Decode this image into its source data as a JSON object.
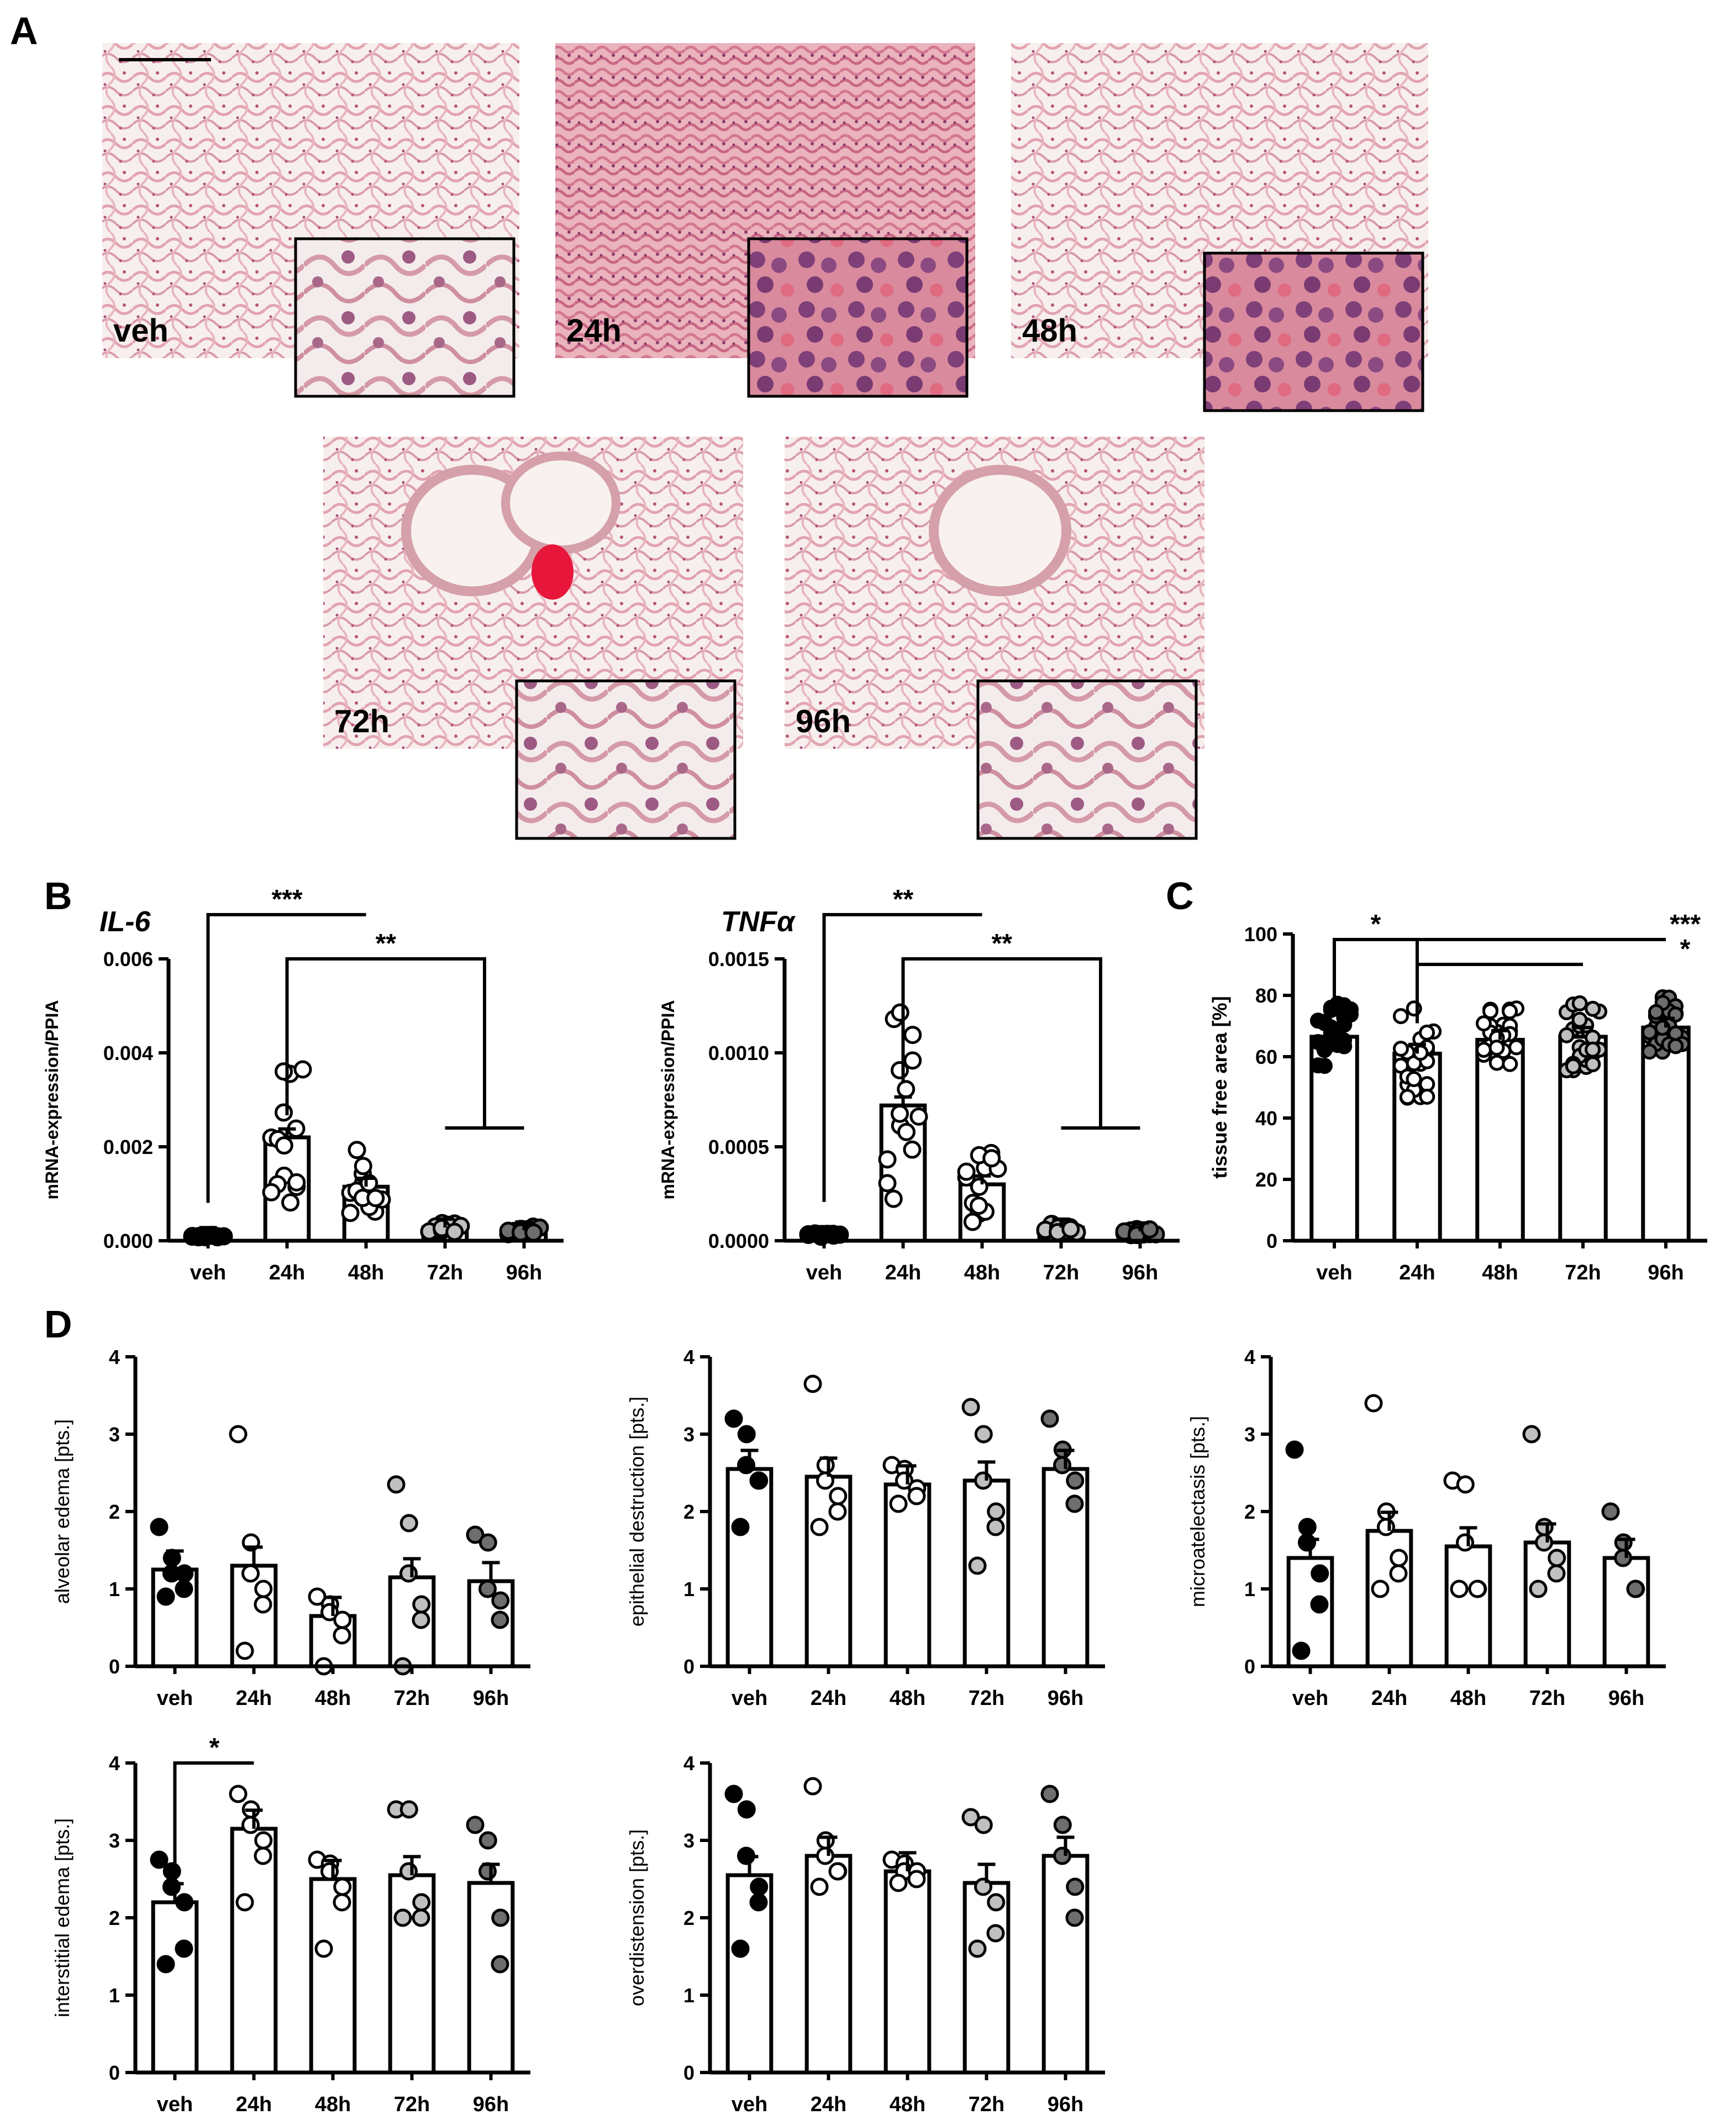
{
  "colors": {
    "axis": "#000000",
    "tissue_pink": "#e8a9b4",
    "tissue_dark": "#b5537a",
    "background_light": "#f5eeee",
    "veh_dot": "#000000",
    "h24_dot": "#ffffff",
    "h48_dot": "#ffffff",
    "h72_dot": "#c0c0c0",
    "h96_dot": "#6e6e6e"
  },
  "panel_letters": {
    "A": "A",
    "B": "B",
    "C": "C",
    "D": "D"
  },
  "histology": [
    {
      "label": "veh"
    },
    {
      "label": "24h"
    },
    {
      "label": "48h"
    },
    {
      "label": "72h"
    },
    {
      "label": "96h"
    }
  ],
  "chart_data": [
    {
      "panel": "B",
      "type": "bar",
      "title": "IL-6",
      "ylabel": "mRNA-expression/PPIA",
      "categories": [
        "veh",
        "24h",
        "48h",
        "72h",
        "96h"
      ],
      "values": [
        0.0001,
        0.0022,
        0.00115,
        0.00028,
        0.00022
      ],
      "ylim": [
        0,
        0.006
      ],
      "yticks": [
        "0.000",
        "0.002",
        "0.004",
        "0.006"
      ],
      "significance": [
        {
          "label": "***",
          "from": "veh",
          "to": "48h"
        },
        {
          "label": "**",
          "from": "24h",
          "to": "72h, 96h"
        }
      ]
    },
    {
      "panel": "B",
      "type": "bar",
      "title": "TNFα",
      "ylabel": "mRNA-expression/PPIA",
      "categories": [
        "veh",
        "24h",
        "48h",
        "72h",
        "96h"
      ],
      "values": [
        3e-05,
        0.00072,
        0.0003,
        7e-05,
        5e-05
      ],
      "ylim": [
        0,
        0.0015
      ],
      "yticks": [
        "0.0000",
        "0.0005",
        "0.0010",
        "0.0015"
      ],
      "significance": [
        {
          "label": "**",
          "from": "veh",
          "to": "48h"
        },
        {
          "label": "**",
          "from": "24h",
          "to": "72h, 96h"
        }
      ]
    },
    {
      "panel": "C",
      "type": "bar",
      "ylabel": "tissue free area [%]",
      "categories": [
        "veh",
        "24h",
        "48h",
        "72h",
        "96h"
      ],
      "values": [
        66.5,
        61,
        65.5,
        66.5,
        69.5
      ],
      "ylim": [
        0,
        100
      ],
      "yticks": [
        "0",
        "20",
        "40",
        "60",
        "80",
        "100"
      ],
      "significance": [
        {
          "label": "*",
          "from": "veh",
          "to": "24h"
        },
        {
          "label": "*",
          "from": "24h",
          "to": "72h"
        },
        {
          "label": "***",
          "from": "24h",
          "to": "96h"
        }
      ]
    },
    {
      "panel": "D",
      "type": "bar",
      "ylabel": "alveolar edema [pts.]",
      "categories": [
        "veh",
        "24h",
        "48h",
        "72h",
        "96h"
      ],
      "values": [
        1.25,
        1.3,
        0.65,
        1.15,
        1.1
      ],
      "ylim": [
        0,
        4
      ],
      "yticks": [
        "0",
        "1",
        "2",
        "3",
        "4"
      ],
      "points": [
        [
          1.8,
          1.4,
          1.2,
          1.2,
          1.0,
          0.9
        ],
        [
          3.0,
          1.6,
          1.2,
          1.0,
          0.8,
          0.2
        ],
        [
          0.9,
          0.8,
          0.7,
          0.6,
          0.4,
          0.0
        ],
        [
          2.35,
          1.85,
          1.2,
          0.8,
          0.6,
          0.0
        ],
        [
          1.7,
          1.6,
          1.0,
          0.85,
          0.6
        ]
      ]
    },
    {
      "panel": "D",
      "type": "bar",
      "ylabel": "epithelial destruction [pts.]",
      "categories": [
        "veh",
        "24h",
        "48h",
        "72h",
        "96h"
      ],
      "values": [
        2.55,
        2.45,
        2.35,
        2.4,
        2.55
      ],
      "ylim": [
        0,
        4
      ],
      "yticks": [
        "0",
        "1",
        "2",
        "3",
        "4"
      ],
      "points": [
        [
          3.2,
          3.0,
          2.6,
          2.4,
          2.4,
          1.8
        ],
        [
          3.65,
          2.6,
          2.4,
          2.2,
          2.0,
          1.8
        ],
        [
          2.6,
          2.55,
          2.4,
          2.3,
          2.2,
          2.1
        ],
        [
          3.35,
          3.0,
          2.4,
          2.0,
          1.8,
          1.3
        ],
        [
          3.2,
          2.8,
          2.6,
          2.4,
          2.1
        ]
      ]
    },
    {
      "panel": "D",
      "type": "bar",
      "ylabel": "microatelectasis [pts.]",
      "categories": [
        "veh",
        "24h",
        "48h",
        "72h",
        "96h"
      ],
      "values": [
        1.4,
        1.75,
        1.55,
        1.6,
        1.4
      ],
      "ylim": [
        0,
        4
      ],
      "yticks": [
        "0",
        "1",
        "2",
        "3",
        "4"
      ],
      "points": [
        [
          2.8,
          1.8,
          1.6,
          1.2,
          0.8,
          0.2
        ],
        [
          3.4,
          2.0,
          1.8,
          1.4,
          1.2,
          1.0
        ],
        [
          2.4,
          2.35,
          1.6,
          1.0,
          1.0,
          1.0
        ],
        [
          3.0,
          1.8,
          1.6,
          1.4,
          1.2,
          1.0
        ],
        [
          2.0,
          1.6,
          1.4,
          1.0,
          1.0
        ]
      ]
    },
    {
      "panel": "D",
      "type": "bar",
      "ylabel": "interstitial edema [pts.]",
      "categories": [
        "veh",
        "24h",
        "48h",
        "72h",
        "96h"
      ],
      "values": [
        2.2,
        3.15,
        2.5,
        2.55,
        2.45
      ],
      "ylim": [
        0,
        4
      ],
      "yticks": [
        "0",
        "1",
        "2",
        "3",
        "4"
      ],
      "points": [
        [
          2.75,
          2.6,
          2.4,
          2.2,
          1.6,
          1.4
        ],
        [
          3.6,
          3.4,
          3.2,
          3.0,
          2.8,
          2.2
        ],
        [
          2.75,
          2.7,
          2.6,
          2.4,
          2.2,
          1.6
        ],
        [
          3.4,
          3.4,
          2.6,
          2.2,
          2.0,
          2.0
        ],
        [
          3.2,
          3.0,
          2.6,
          2.0,
          1.4
        ]
      ],
      "significance": [
        {
          "label": "*",
          "from": "veh",
          "to": "24h"
        }
      ]
    },
    {
      "panel": "D",
      "type": "bar",
      "ylabel": "overdistension [pts.]",
      "categories": [
        "veh",
        "24h",
        "48h",
        "72h",
        "96h"
      ],
      "values": [
        2.55,
        2.8,
        2.6,
        2.45,
        2.8
      ],
      "ylim": [
        0,
        4
      ],
      "yticks": [
        "0",
        "1",
        "2",
        "3",
        "4"
      ],
      "points": [
        [
          3.6,
          3.4,
          2.8,
          2.4,
          2.2,
          1.6
        ],
        [
          3.7,
          3.0,
          2.8,
          2.6,
          2.6,
          2.4
        ],
        [
          2.75,
          2.7,
          2.6,
          2.6,
          2.5,
          2.45
        ],
        [
          3.3,
          3.2,
          2.4,
          2.2,
          1.8,
          1.6
        ],
        [
          3.6,
          3.2,
          2.8,
          2.4,
          2.0
        ]
      ]
    }
  ]
}
